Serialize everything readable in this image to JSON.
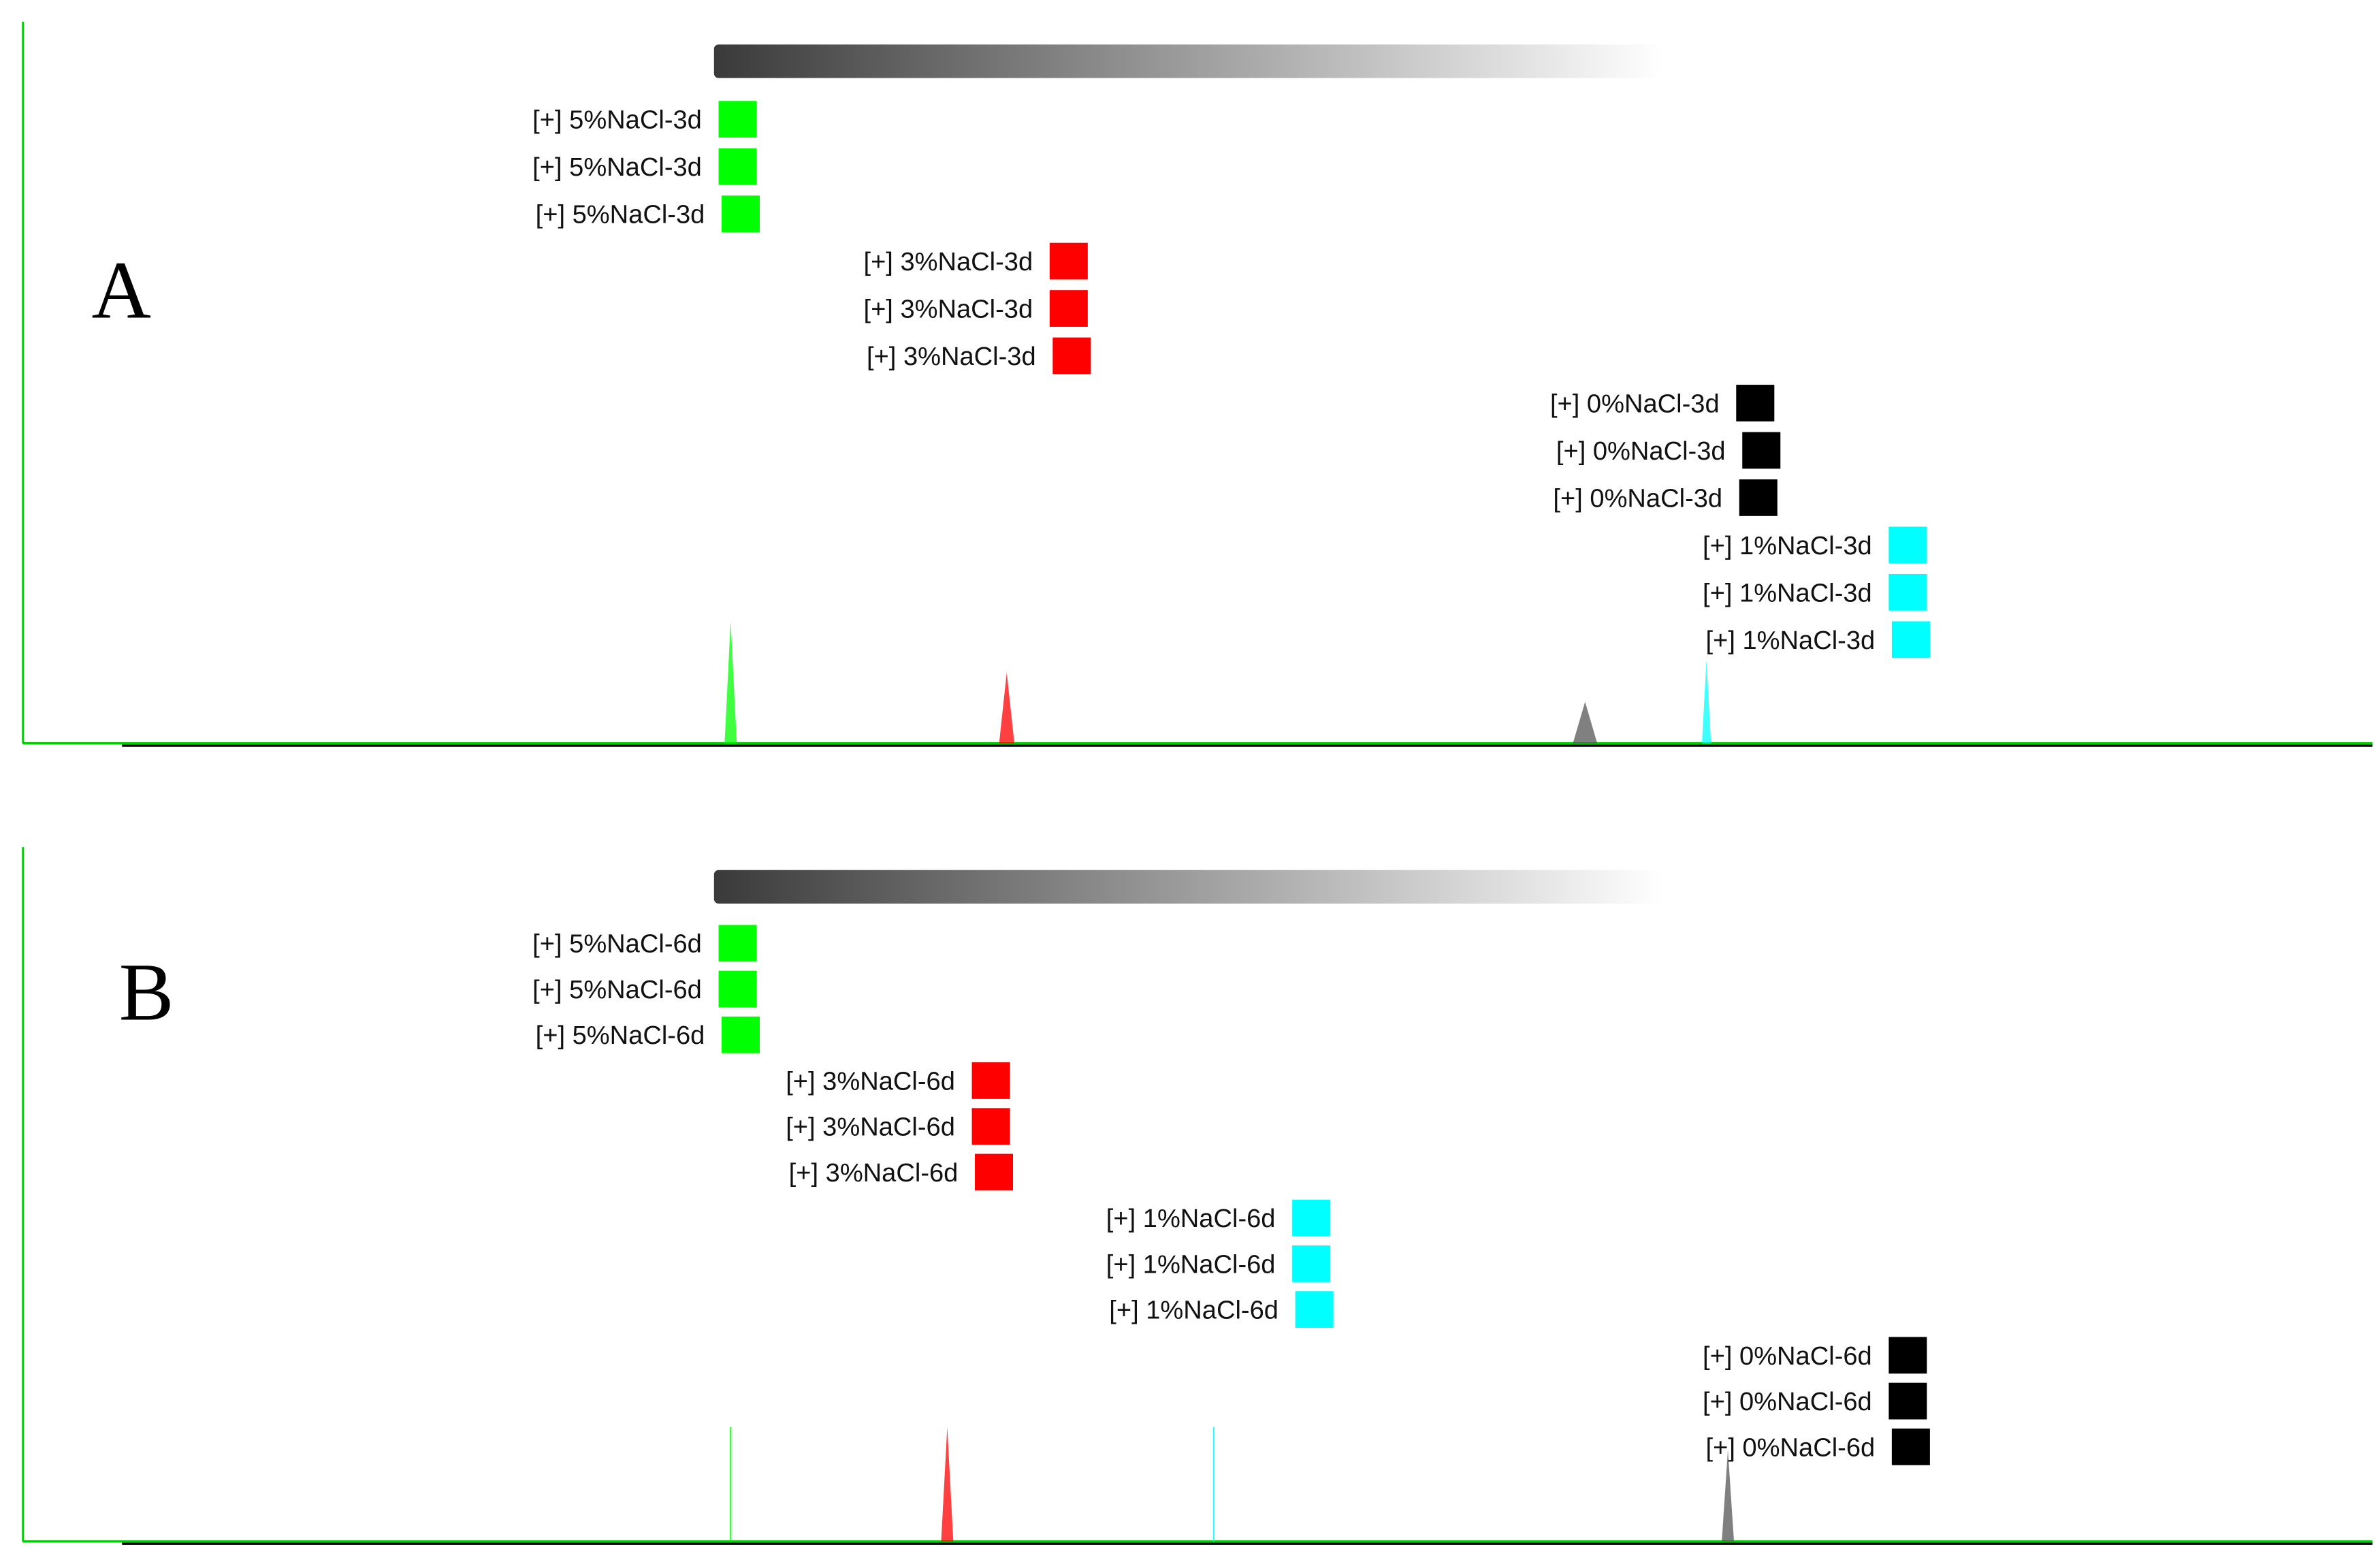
{
  "chart_data": [
    {
      "type": "electropherogram",
      "panel_label": "A",
      "series": [
        {
          "name": "[+] 5%NaCl-3d",
          "color": "#00ff00",
          "replicates": 3,
          "peak_position": 30.7,
          "peak_height": 100
        },
        {
          "name": "[+] 3%NaCl-3d",
          "color": "#ff0000",
          "replicates": 3,
          "peak_position": 42.3,
          "peak_height": 58
        },
        {
          "name": "[+] 0%NaCl-3d",
          "color": "#000000",
          "replicates": 3,
          "peak_position": 66.6,
          "peak_height": 34
        },
        {
          "name": "[+] 1%NaCl-3d",
          "color": "#00ffff",
          "replicates": 3,
          "peak_position": 71.7,
          "peak_height": 68
        }
      ]
    },
    {
      "type": "electropherogram",
      "panel_label": "B",
      "series": [
        {
          "name": "[+] 5%NaCl-6d",
          "color": "#00ff00",
          "replicates": 3,
          "peak_position": 30.7,
          "peak_height": 100
        },
        {
          "name": "[+] 3%NaCl-6d",
          "color": "#ff0000",
          "replicates": 3,
          "peak_position": 39.8,
          "peak_height": 100
        },
        {
          "name": "[+] 1%NaCl-6d",
          "color": "#00ffff",
          "replicates": 3,
          "peak_position": 51.0,
          "peak_height": 100
        },
        {
          "name": "[+] 0%NaCl-6d",
          "color": "#000000",
          "replicates": 3,
          "peak_position": 72.6,
          "peak_height": 80
        }
      ]
    }
  ],
  "colors": {
    "axis": "#00cc00",
    "baseline": "#000000",
    "gradient_start": "#3a3a3a",
    "gradient_end": "#ffffff"
  }
}
